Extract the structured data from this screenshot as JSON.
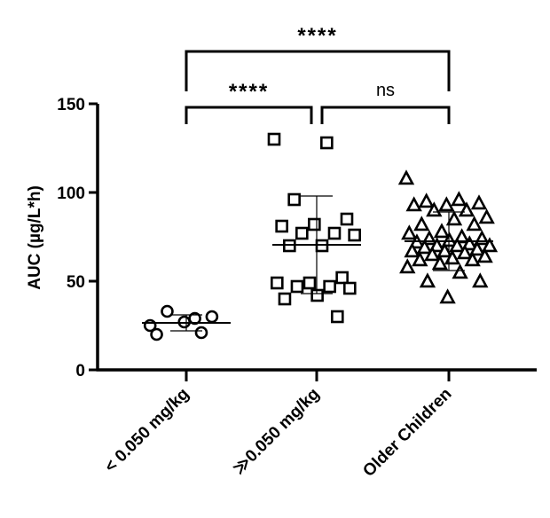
{
  "chart_data": {
    "type": "scatter",
    "title": "",
    "ylabel": "AUC (µg/L*h)",
    "xlabel": "",
    "ylim": [
      0,
      150
    ],
    "yticks": [
      0,
      50,
      100,
      150
    ],
    "grid": false,
    "categories": [
      "< 0.050 mg/kg",
      "≫0.050 mg/kg",
      "Older Children"
    ],
    "series": [
      {
        "category": "< 0.050 mg/kg",
        "marker": "circle",
        "mean": 26.5,
        "sd": [
          22,
          31
        ],
        "values": [
          25,
          29,
          33,
          30,
          27,
          20,
          21
        ]
      },
      {
        "category": "≫0.050 mg/kg",
        "marker": "square",
        "mean": 70.5,
        "sd": [
          43,
          98
        ],
        "values": [
          130,
          128,
          96,
          85,
          82,
          81,
          77,
          77,
          76,
          70,
          70,
          52,
          49,
          49,
          47,
          47,
          46,
          42,
          40,
          30
        ]
      },
      {
        "category": "Older Children",
        "marker": "triangle",
        "mean": 72.5,
        "sd": [
          56,
          89
        ],
        "values": [
          108,
          96,
          95,
          94,
          93,
          93,
          90,
          90,
          86,
          85,
          82,
          82,
          78,
          77,
          75,
          74,
          74,
          73,
          72,
          71,
          70,
          70,
          70,
          69,
          68,
          67,
          67,
          66,
          65,
          64,
          63,
          62,
          62,
          60,
          58,
          55,
          50,
          50,
          41
        ]
      }
    ],
    "comparisons": [
      {
        "from": "< 0.050 mg/kg",
        "to": "Older Children",
        "label": "****"
      },
      {
        "from": "< 0.050 mg/kg",
        "to": "≫0.050 mg/kg",
        "label": "****"
      },
      {
        "from": "≫0.050 mg/kg",
        "to": "Older Children",
        "label": "ns"
      }
    ]
  }
}
